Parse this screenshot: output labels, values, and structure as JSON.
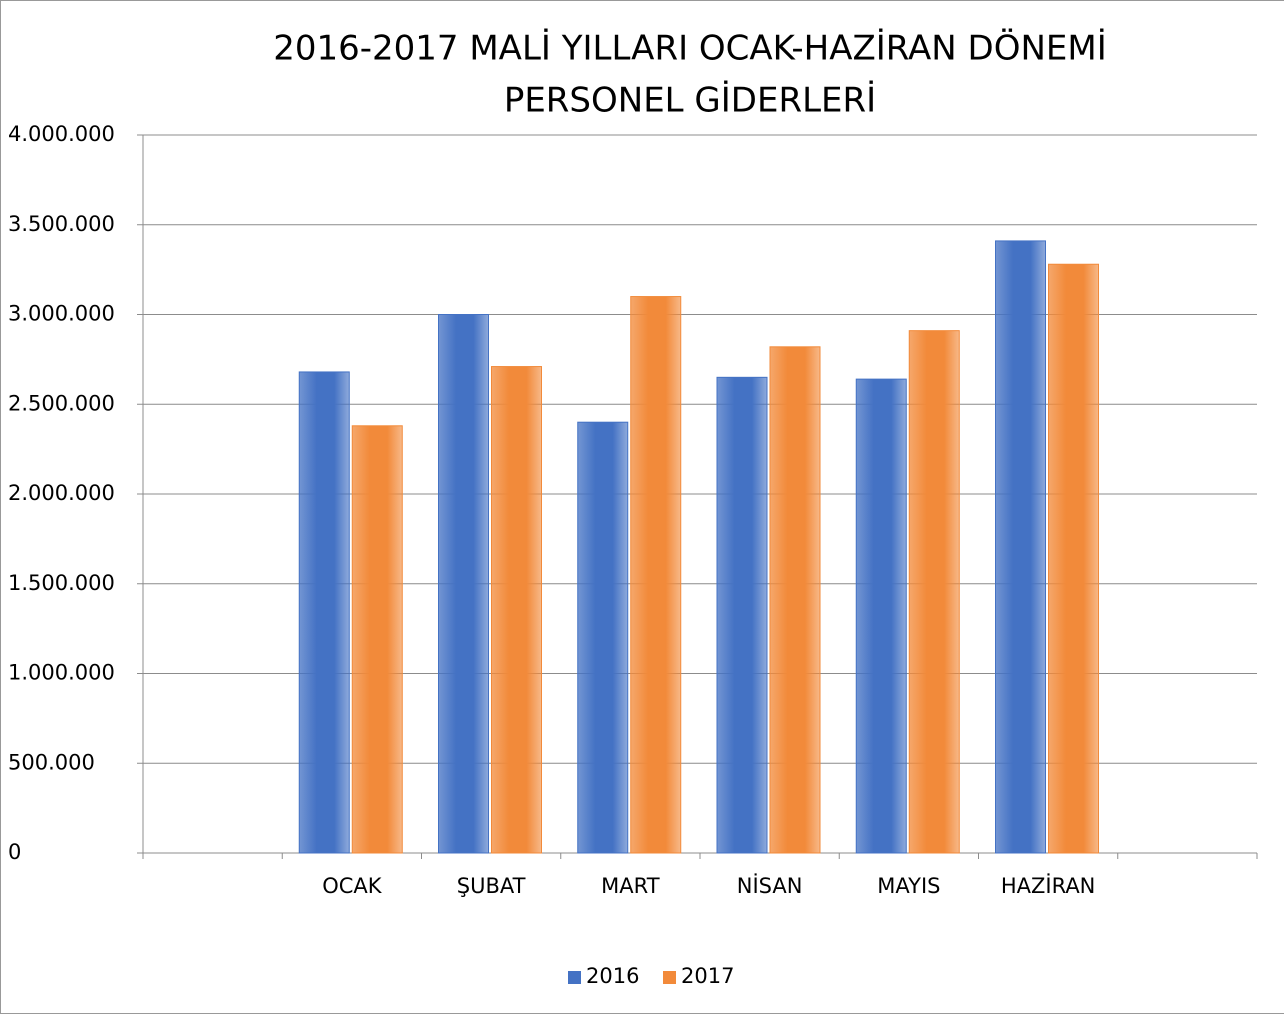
{
  "chart_data": {
    "type": "bar",
    "title": "2016-2017 MALİ YILLARI OCAK-HAZİRAN DÖNEMİ",
    "subtitle": "PERSONEL GİDERLERİ",
    "categories": [
      null,
      "OCAK",
      "ŞUBAT",
      "MART",
      "NİSAN",
      "MAYIS",
      "HAZİRAN",
      null
    ],
    "series": [
      {
        "name": "2016",
        "color": "#4472c4",
        "values": [
          null,
          2680000,
          3000000,
          2400000,
          2650000,
          2640000,
          3410000,
          null
        ]
      },
      {
        "name": "2017",
        "color": "#f28a3a",
        "values": [
          null,
          2380000,
          2710000,
          3100000,
          2820000,
          2910000,
          3280000,
          null
        ]
      }
    ],
    "ylim": [
      0,
      4000000
    ],
    "yticks": [
      0,
      {
        "value": 500000,
        "label": "500.000"
      },
      {
        "value": 1000000,
        "label": "1.000.000"
      },
      {
        "value": 1500000,
        "label": "1.500.000"
      },
      {
        "value": 2000000,
        "label": "2.000.000"
      },
      {
        "value": 2500000,
        "label": "2.500.000"
      },
      {
        "value": 3000000,
        "label": "3.000.000"
      },
      {
        "value": 3500000,
        "label": "3.500.000"
      },
      {
        "value": 4000000,
        "label": "4.000.000"
      }
    ],
    "grid": true,
    "legend": "bottom"
  }
}
